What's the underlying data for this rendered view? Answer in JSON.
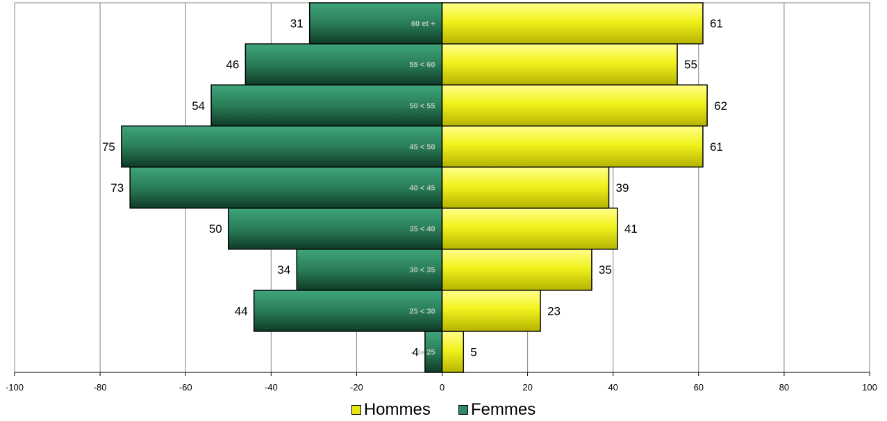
{
  "chart_data": {
    "type": "bar",
    "orientation": "horizontal",
    "categories": [
      "- de 25",
      "25 < 30",
      "30 < 35",
      "35 < 40",
      "40 < 45",
      "45 < 50",
      "50 < 55",
      "55 < 60",
      "60 et +"
    ],
    "series": [
      {
        "name": "Hommes",
        "values": [
          5,
          23,
          35,
          41,
          39,
          61,
          62,
          55,
          61
        ],
        "color": "#e6e614",
        "side": "right"
      },
      {
        "name": "Femmes",
        "values": [
          4,
          44,
          34,
          50,
          73,
          75,
          54,
          46,
          31
        ],
        "color": "#2d8a62",
        "side": "left"
      }
    ],
    "xlim": [
      -100,
      100
    ],
    "xticks": [
      -100,
      -80,
      -60,
      -40,
      -20,
      0,
      20,
      40,
      60,
      80,
      100
    ],
    "grid": true,
    "legend_position": "bottom",
    "title": "",
    "xlabel": "",
    "ylabel": ""
  }
}
